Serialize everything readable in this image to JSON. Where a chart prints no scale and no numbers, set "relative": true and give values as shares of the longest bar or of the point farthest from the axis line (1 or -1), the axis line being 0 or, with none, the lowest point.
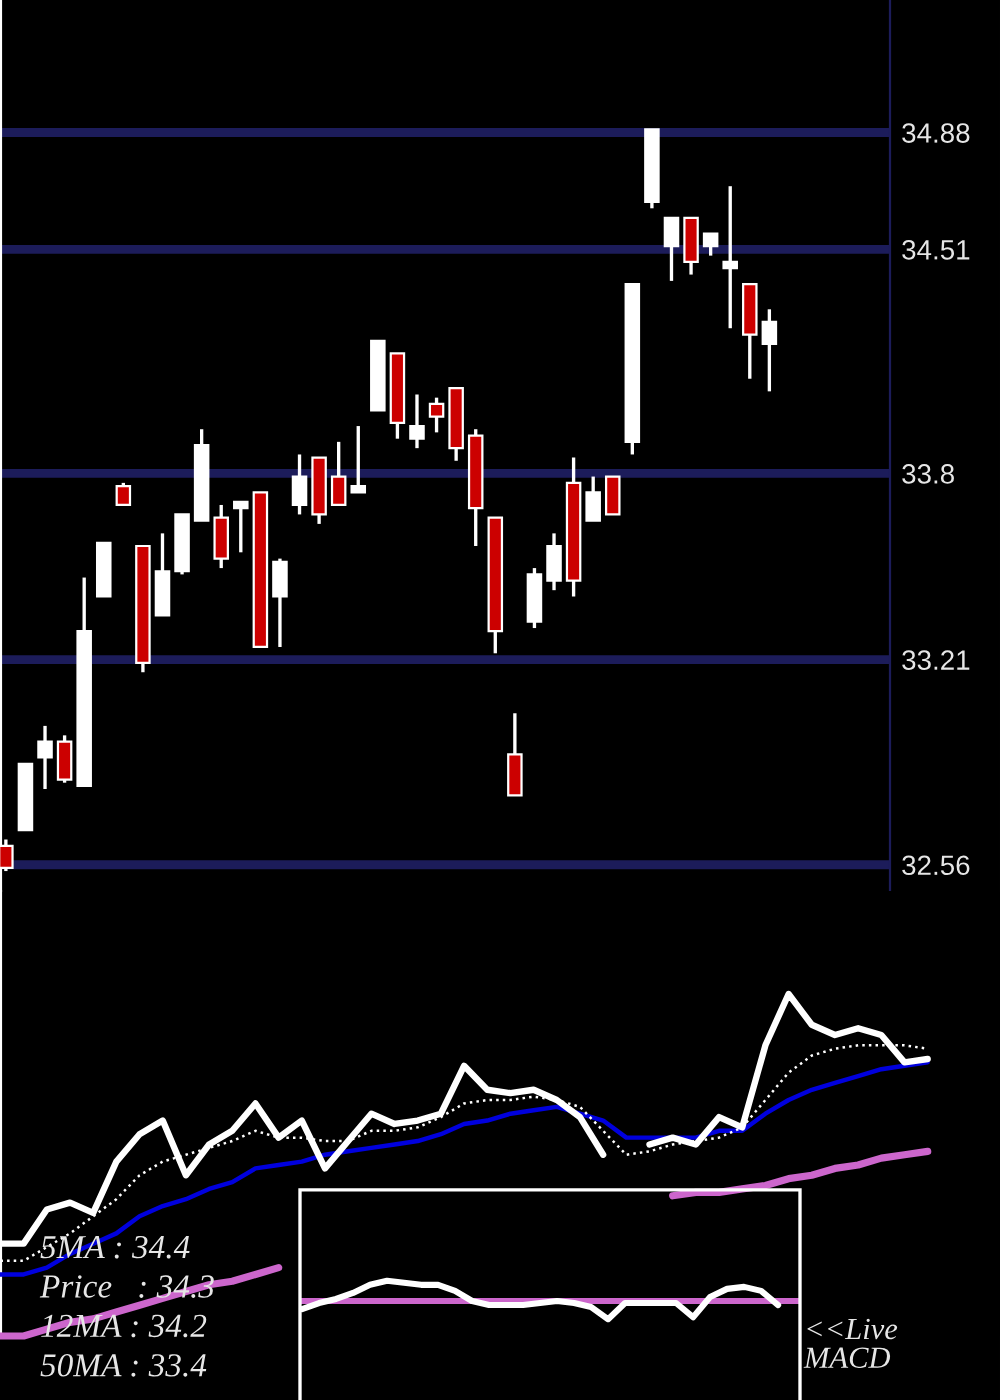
{
  "chart_data": [
    {
      "type": "candlestick",
      "categories": [
        null,
        null,
        null,
        null,
        null,
        null,
        null,
        null,
        null,
        null,
        null,
        null,
        null,
        null,
        null,
        null,
        null,
        null,
        null,
        null,
        null,
        null,
        null,
        null,
        null,
        null,
        null,
        null,
        null,
        null,
        null,
        null,
        null,
        null,
        null,
        null,
        null,
        null,
        null,
        null
      ],
      "ohlc": [
        [
          32.62,
          32.64,
          32.54,
          32.55
        ],
        [
          32.67,
          32.88,
          32.67,
          32.88
        ],
        [
          32.9,
          33.0,
          32.8,
          32.95
        ],
        [
          32.95,
          32.97,
          32.82,
          32.83
        ],
        [
          32.81,
          33.47,
          32.81,
          33.3
        ],
        [
          33.41,
          33.58,
          33.41,
          33.58
        ],
        [
          33.76,
          33.77,
          33.7,
          33.7
        ],
        [
          33.57,
          33.57,
          33.17,
          33.2
        ],
        [
          33.35,
          33.61,
          33.35,
          33.49
        ],
        [
          33.49,
          33.67,
          33.48,
          33.67
        ],
        [
          33.65,
          33.94,
          33.65,
          33.89
        ],
        [
          33.66,
          33.7,
          33.5,
          33.53
        ],
        [
          33.69,
          33.71,
          33.55,
          33.71
        ],
        [
          33.74,
          33.74,
          33.25,
          33.25
        ],
        [
          33.41,
          33.53,
          33.25,
          33.52
        ],
        [
          33.7,
          33.86,
          33.67,
          33.79
        ],
        [
          33.85,
          33.85,
          33.64,
          33.67
        ],
        [
          33.79,
          33.9,
          33.7,
          33.7
        ],
        [
          33.74,
          33.95,
          33.74,
          33.76
        ],
        [
          34.0,
          34.22,
          34.0,
          34.22
        ],
        [
          34.18,
          34.18,
          33.91,
          33.96
        ],
        [
          33.91,
          34.05,
          33.88,
          33.95
        ],
        [
          34.02,
          34.04,
          33.93,
          33.98
        ],
        [
          34.07,
          34.07,
          33.84,
          33.88
        ],
        [
          33.92,
          33.94,
          33.57,
          33.69
        ],
        [
          33.66,
          33.66,
          33.23,
          33.3
        ],
        [
          32.91,
          33.04,
          32.78,
          32.78
        ],
        [
          33.33,
          33.5,
          33.31,
          33.48
        ],
        [
          33.46,
          33.61,
          33.43,
          33.57
        ],
        [
          33.77,
          33.85,
          33.41,
          33.46
        ],
        [
          33.65,
          33.79,
          33.65,
          33.74
        ],
        [
          33.79,
          33.79,
          33.67,
          33.67
        ],
        [
          33.9,
          34.4,
          33.86,
          34.4
        ],
        [
          34.66,
          34.89,
          34.64,
          34.89
        ],
        [
          34.52,
          34.61,
          34.41,
          34.61
        ],
        [
          34.61,
          34.61,
          34.43,
          34.47
        ],
        [
          34.52,
          34.56,
          34.49,
          34.56
        ],
        [
          34.45,
          34.71,
          34.26,
          34.47
        ],
        [
          34.4,
          34.4,
          34.1,
          34.24
        ],
        [
          34.21,
          34.32,
          34.06,
          34.28
        ]
      ],
      "colors": [
        "#cc0000",
        "#ffffff",
        "#ffffff",
        "#cc0000",
        "#ffffff",
        "#ffffff",
        "#cc0000",
        "#cc0000",
        "#ffffff",
        "#ffffff",
        "#ffffff",
        "#cc0000",
        "#ffffff",
        "#cc0000",
        "#ffffff",
        "#ffffff",
        "#cc0000",
        "#cc0000",
        "#ffffff",
        "#ffffff",
        "#cc0000",
        "#ffffff",
        "#cc0000",
        "#cc0000",
        "#cc0000",
        "#cc0000",
        "#cc0000",
        "#ffffff",
        "#ffffff",
        "#cc0000",
        "#ffffff",
        "#cc0000",
        "#ffffff",
        "#ffffff",
        "#ffffff",
        "#cc0000",
        "#ffffff",
        "#ffffff",
        "#cc0000",
        "#ffffff"
      ],
      "ylim": [
        32.48,
        35.3
      ],
      "yticks": [
        32.56,
        33.21,
        33.8,
        34.51,
        34.88
      ],
      "grid": "y",
      "tick_labels": "y"
    },
    {
      "type": "line",
      "relative": true,
      "tick_labels": false,
      "categories": [
        null,
        null,
        null,
        null,
        null,
        null,
        null,
        null,
        null,
        null,
        null,
        null,
        null,
        null,
        null,
        null,
        null,
        null,
        null,
        null,
        null,
        null,
        null,
        null,
        null,
        null,
        null,
        null,
        null,
        null,
        null,
        null,
        null,
        null,
        null,
        null,
        null,
        null,
        null,
        null,
        null
      ],
      "series": [
        {
          "color": "#ffffff",
          "values": [
            0.27,
            0.27,
            0.37,
            0.39,
            0.36,
            0.51,
            0.59,
            0.63,
            0.47,
            0.56,
            0.6,
            0.68,
            0.58,
            0.63,
            0.49,
            0.57,
            0.65,
            0.62,
            0.63,
            0.65,
            0.79,
            0.72,
            0.71,
            0.72,
            0.69,
            0.64,
            0.53,
            null,
            0.56,
            0.58,
            0.56,
            0.64,
            0.61,
            0.85,
            1,
            0.91,
            0.88,
            0.9,
            0.88,
            0.8,
            0.81
          ]
        },
        {
          "color": "#ffffff",
          "line_style": "dotted",
          "values": [
            0.22,
            0.22,
            0.26,
            0.3,
            0.35,
            0.4,
            0.47,
            0.51,
            0.53,
            0.55,
            0.57,
            0.6,
            0.58,
            0.58,
            0.57,
            0.57,
            0.6,
            0.6,
            0.61,
            0.64,
            0.68,
            0.69,
            0.69,
            0.7,
            0.69,
            0.67,
            0.6,
            0.53,
            0.54,
            0.56,
            0.57,
            0.58,
            0.61,
            0.69,
            0.77,
            0.82,
            0.84,
            0.85,
            0.85,
            0.85,
            0.84
          ]
        },
        {
          "color": "#0000dd",
          "values": [
            0.18,
            0.18,
            0.2,
            0.24,
            0.27,
            0.3,
            0.35,
            0.38,
            0.4,
            0.43,
            0.45,
            0.49,
            0.5,
            0.51,
            0.53,
            0.54,
            0.55,
            0.56,
            0.57,
            0.59,
            0.62,
            0.63,
            0.65,
            0.66,
            0.67,
            0.65,
            0.63,
            0.58,
            0.58,
            0.58,
            0.58,
            0.6,
            0.6,
            0.65,
            0.69,
            0.72,
            0.74,
            0.76,
            0.78,
            0.79,
            0.8
          ]
        },
        {
          "color": "#cc66cc",
          "values": [
            0,
            0,
            0.02,
            0.04,
            0.05,
            0.07,
            0.09,
            0.11,
            0.13,
            0.15,
            0.16,
            0.18,
            0.2,
            null,
            null,
            null,
            null,
            null,
            null,
            null,
            null,
            null,
            null,
            null,
            null,
            null,
            null,
            null,
            null,
            0.41,
            0.42,
            0.42,
            0.43,
            0.44,
            0.46,
            0.47,
            0.49,
            0.5,
            0.52,
            0.53,
            0.54
          ]
        }
      ]
    },
    {
      "type": "other",
      "annotations": [
        "5MA : 34.4",
        "Price   : 34.3",
        "12MA : 34.2",
        "50MA : 33.4"
      ]
    },
    {
      "type": "line",
      "relative": true,
      "tick_labels": false,
      "categories": [
        null,
        null,
        null,
        null,
        null,
        null,
        null,
        null,
        null,
        null,
        null,
        null,
        null,
        null,
        null,
        null,
        null,
        null,
        null,
        null,
        null,
        null,
        null,
        null,
        null,
        null,
        null,
        null,
        null
      ],
      "series": [
        {
          "color": "#ffffff",
          "values": [
            -0.4,
            -0.1,
            0.1,
            0.4,
            0.8,
            1,
            0.9,
            0.8,
            0.8,
            0.5,
            0,
            -0.2,
            -0.2,
            -0.2,
            -0.1,
            0,
            -0.1,
            -0.3,
            -0.9,
            -0.1,
            -0.1,
            -0.1,
            -0.1,
            -0.8,
            0.2,
            0.6,
            0.7,
            0.5,
            -0.2
          ]
        }
      ],
      "ref_lines": [
        {
          "axis": "y",
          "value": 0,
          "color": "#cc66cc"
        }
      ],
      "annotations": [
        "<<Live\nMACD"
      ]
    }
  ]
}
